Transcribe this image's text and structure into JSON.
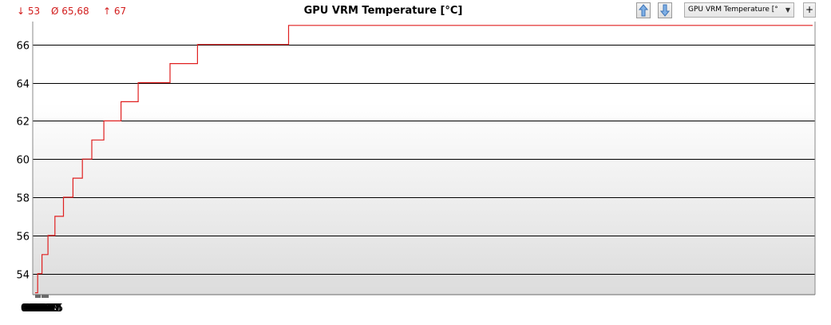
{
  "stats": {
    "min": "↓ 53",
    "avg": "Ø 65,68",
    "max": "↑ 67",
    "color": "#d21d1d"
  },
  "title": "GPU VRM Temperature [°C]",
  "toolbar": {
    "sensor_select_value": "GPU VRM Temperature [°C]",
    "add_button_label": "+"
  },
  "chart_data": {
    "type": "line",
    "title": "GPU VRM Temperature [°C]",
    "xlabel": "",
    "ylabel": "",
    "x_ticks": [
      "00:00",
      "00:01",
      "00:02",
      "00:03",
      "00:04",
      "00:05",
      "00:06",
      "00:07",
      "00:08",
      "00:09",
      "00:10",
      "00:11",
      "00:12",
      "00:13",
      "00:14",
      "00:15"
    ],
    "y_ticks": [
      54,
      56,
      58,
      60,
      62,
      64,
      66
    ],
    "xlim": [
      "00:00",
      "00:15:05"
    ],
    "ylim": [
      52.9,
      67.2
    ],
    "step": true,
    "grid": "horizontal",
    "legend": "none",
    "series": [
      {
        "color": "#e02020",
        "points": [
          [
            "00:00",
            53
          ],
          [
            "00:00:03",
            54
          ],
          [
            "00:00:08",
            55
          ],
          [
            "00:00:15",
            56
          ],
          [
            "00:00:23",
            57
          ],
          [
            "00:00:33",
            58
          ],
          [
            "00:00:44",
            59
          ],
          [
            "00:00:55",
            60
          ],
          [
            "00:01:06",
            61
          ],
          [
            "00:01:20",
            62
          ],
          [
            "00:01:40",
            63
          ],
          [
            "00:02:00",
            64
          ],
          [
            "00:02:37",
            65
          ],
          [
            "00:03:09",
            66
          ],
          [
            "00:04:55",
            67
          ],
          [
            "00:15:05",
            67
          ]
        ]
      }
    ]
  }
}
